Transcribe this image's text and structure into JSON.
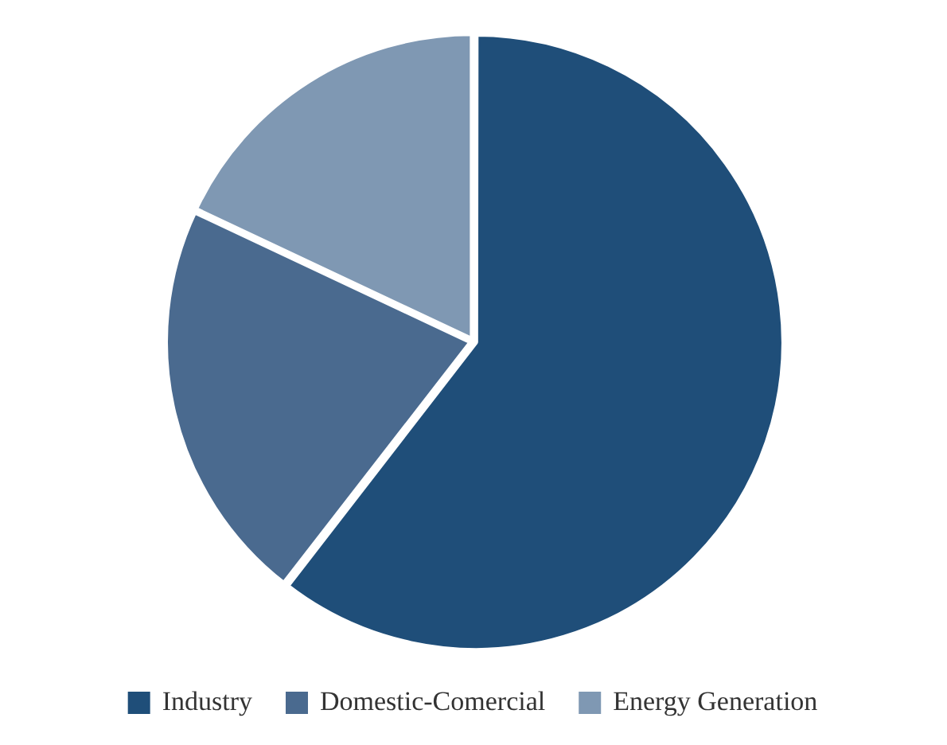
{
  "chart_data": {
    "type": "pie",
    "categories": [
      "Industry",
      "Domestic-Comercial",
      "Energy Generation"
    ],
    "values": [
      60.5,
      21.5,
      18
    ],
    "colors": [
      "#1f4e79",
      "#4a6a8f",
      "#7f98b3"
    ],
    "legend": "bottom"
  }
}
